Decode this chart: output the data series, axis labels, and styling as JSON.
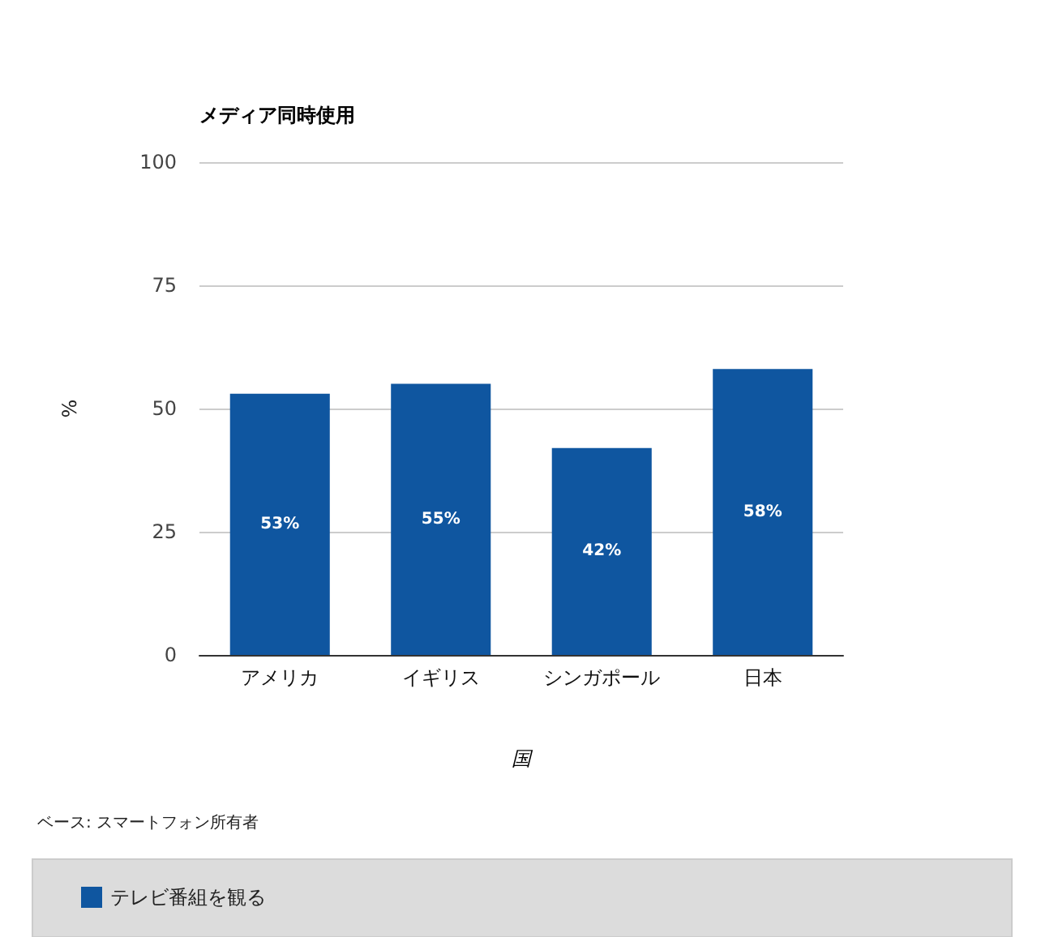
{
  "chart_data": {
    "type": "bar",
    "title": "メディア同時使用",
    "xlabel": "国",
    "ylabel": "%",
    "annotations": [
      "ベース: スマートフォン所有者"
    ],
    "categories": [
      "アメリカ",
      "イギリス",
      "シンガポール",
      "日本"
    ],
    "series": [
      {
        "name": "テレビ番組を観る",
        "color": "#0f56a0",
        "values": [
          53,
          55,
          42,
          58
        ],
        "value_labels": [
          "53%",
          "55%",
          "42%",
          "58%"
        ]
      }
    ],
    "ylim": [
      0,
      100
    ],
    "yticks": [
      0,
      25,
      50,
      75,
      100
    ],
    "grid": "y",
    "legend": "bottom"
  }
}
